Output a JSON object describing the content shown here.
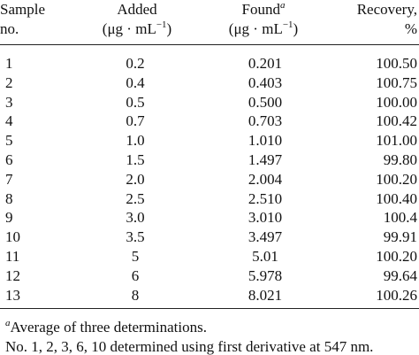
{
  "table": {
    "header": [
      {
        "lines": [
          [
            {
              "text": "Sample"
            }
          ],
          [
            {
              "text": "no."
            }
          ]
        ]
      },
      {
        "lines": [
          [
            {
              "text": "Added"
            }
          ],
          [
            {
              "text": "(μg · mL"
            },
            {
              "sup": "−1"
            },
            {
              "text": ")"
            }
          ]
        ]
      },
      {
        "lines": [
          [
            {
              "text": "Found"
            },
            {
              "sup": "a"
            }
          ],
          [
            {
              "text": "(μg · mL"
            },
            {
              "sup": "−1"
            },
            {
              "text": ")"
            }
          ]
        ]
      },
      {
        "lines": [
          [
            {
              "text": "Recovery,"
            }
          ],
          [
            {
              "text": "%"
            }
          ]
        ]
      }
    ],
    "rows": [
      [
        "1",
        "0.2",
        "0.201",
        "100.50"
      ],
      [
        "2",
        "0.4",
        "0.403",
        "100.75"
      ],
      [
        "3",
        "0.5",
        "0.500",
        "100.00"
      ],
      [
        "4",
        "0.7",
        "0.703",
        "100.42"
      ],
      [
        "5",
        "1.0",
        "1.010",
        "101.00"
      ],
      [
        "6",
        "1.5",
        "1.497",
        "99.80"
      ],
      [
        "7",
        "2.0",
        "2.004",
        "100.20"
      ],
      [
        "8",
        "2.5",
        "2.510",
        "100.40"
      ],
      [
        "9",
        "3.0",
        "3.010",
        "100.4"
      ],
      [
        "10",
        "3.5",
        "3.497",
        "99.91"
      ],
      [
        "11",
        "5",
        "5.01",
        "100.20"
      ],
      [
        "12",
        "6",
        "5.978",
        "99.64"
      ],
      [
        "13",
        "8",
        "8.021",
        "100.26"
      ]
    ]
  },
  "footnotes": [
    [
      {
        "sup": "a"
      },
      {
        "text": "Average of three determinations."
      }
    ],
    [
      {
        "text": "No. 1, 2, 3, 6, 10 determined using first derivative at 547 nm."
      }
    ]
  ]
}
